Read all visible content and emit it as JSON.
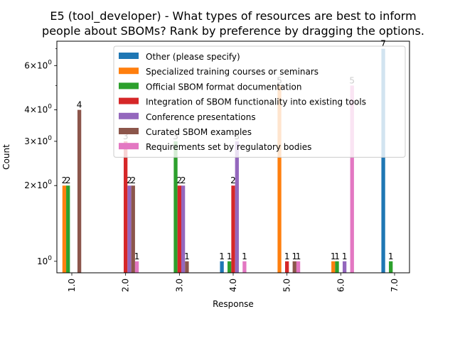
{
  "chart_data": {
    "type": "bar",
    "title": "E5 (tool_developer) - What types of resources are best to inform people about SBOMs? Rank by preference by dragging the options.",
    "title_lines": [
      "E5 (tool_developer) - What types of resources are best to inform",
      "people about SBOMs? Rank by preference by dragging the options."
    ],
    "xlabel": "Response",
    "ylabel": "Count",
    "yscale": "log",
    "ylim": [
      0.9,
      7.5
    ],
    "yticks": [
      {
        "value": 1,
        "label": "10^0"
      },
      {
        "value": 2,
        "label": "2×10^0"
      },
      {
        "value": 3,
        "label": "3×10^0"
      },
      {
        "value": 4,
        "label": "4×10^0"
      },
      {
        "value": 6,
        "label": "6×10^0"
      }
    ],
    "categories": [
      "1.0",
      "2.0",
      "3.0",
      "4.0",
      "5.0",
      "6.0",
      "7.0"
    ],
    "series": [
      {
        "name": "Other (please specify)",
        "color": "#1f77b4",
        "values": [
          null,
          null,
          null,
          1,
          null,
          null,
          7
        ]
      },
      {
        "name": "Specialized training courses or seminars",
        "color": "#ff7f0e",
        "values": [
          2,
          null,
          null,
          null,
          5,
          1,
          null
        ]
      },
      {
        "name": "Official SBOM format documentation",
        "color": "#2ca02c",
        "values": [
          2,
          null,
          3,
          1,
          null,
          1,
          1
        ]
      },
      {
        "name": "Integration of SBOM functionality into existing tools",
        "color": "#d62728",
        "values": [
          null,
          3,
          2,
          2,
          1,
          null,
          null
        ]
      },
      {
        "name": "Conference presentations",
        "color": "#9467bd",
        "values": [
          null,
          2,
          2,
          3,
          null,
          1,
          null
        ]
      },
      {
        "name": "Curated SBOM examples",
        "color": "#8c564b",
        "values": [
          4,
          2,
          1,
          null,
          1,
          null,
          null
        ]
      },
      {
        "name": "Requirements set by regulatory bodies",
        "color": "#e377c2",
        "values": [
          null,
          1,
          null,
          1,
          1,
          5,
          null
        ]
      }
    ],
    "legend_position": "top-right",
    "grid": false
  }
}
